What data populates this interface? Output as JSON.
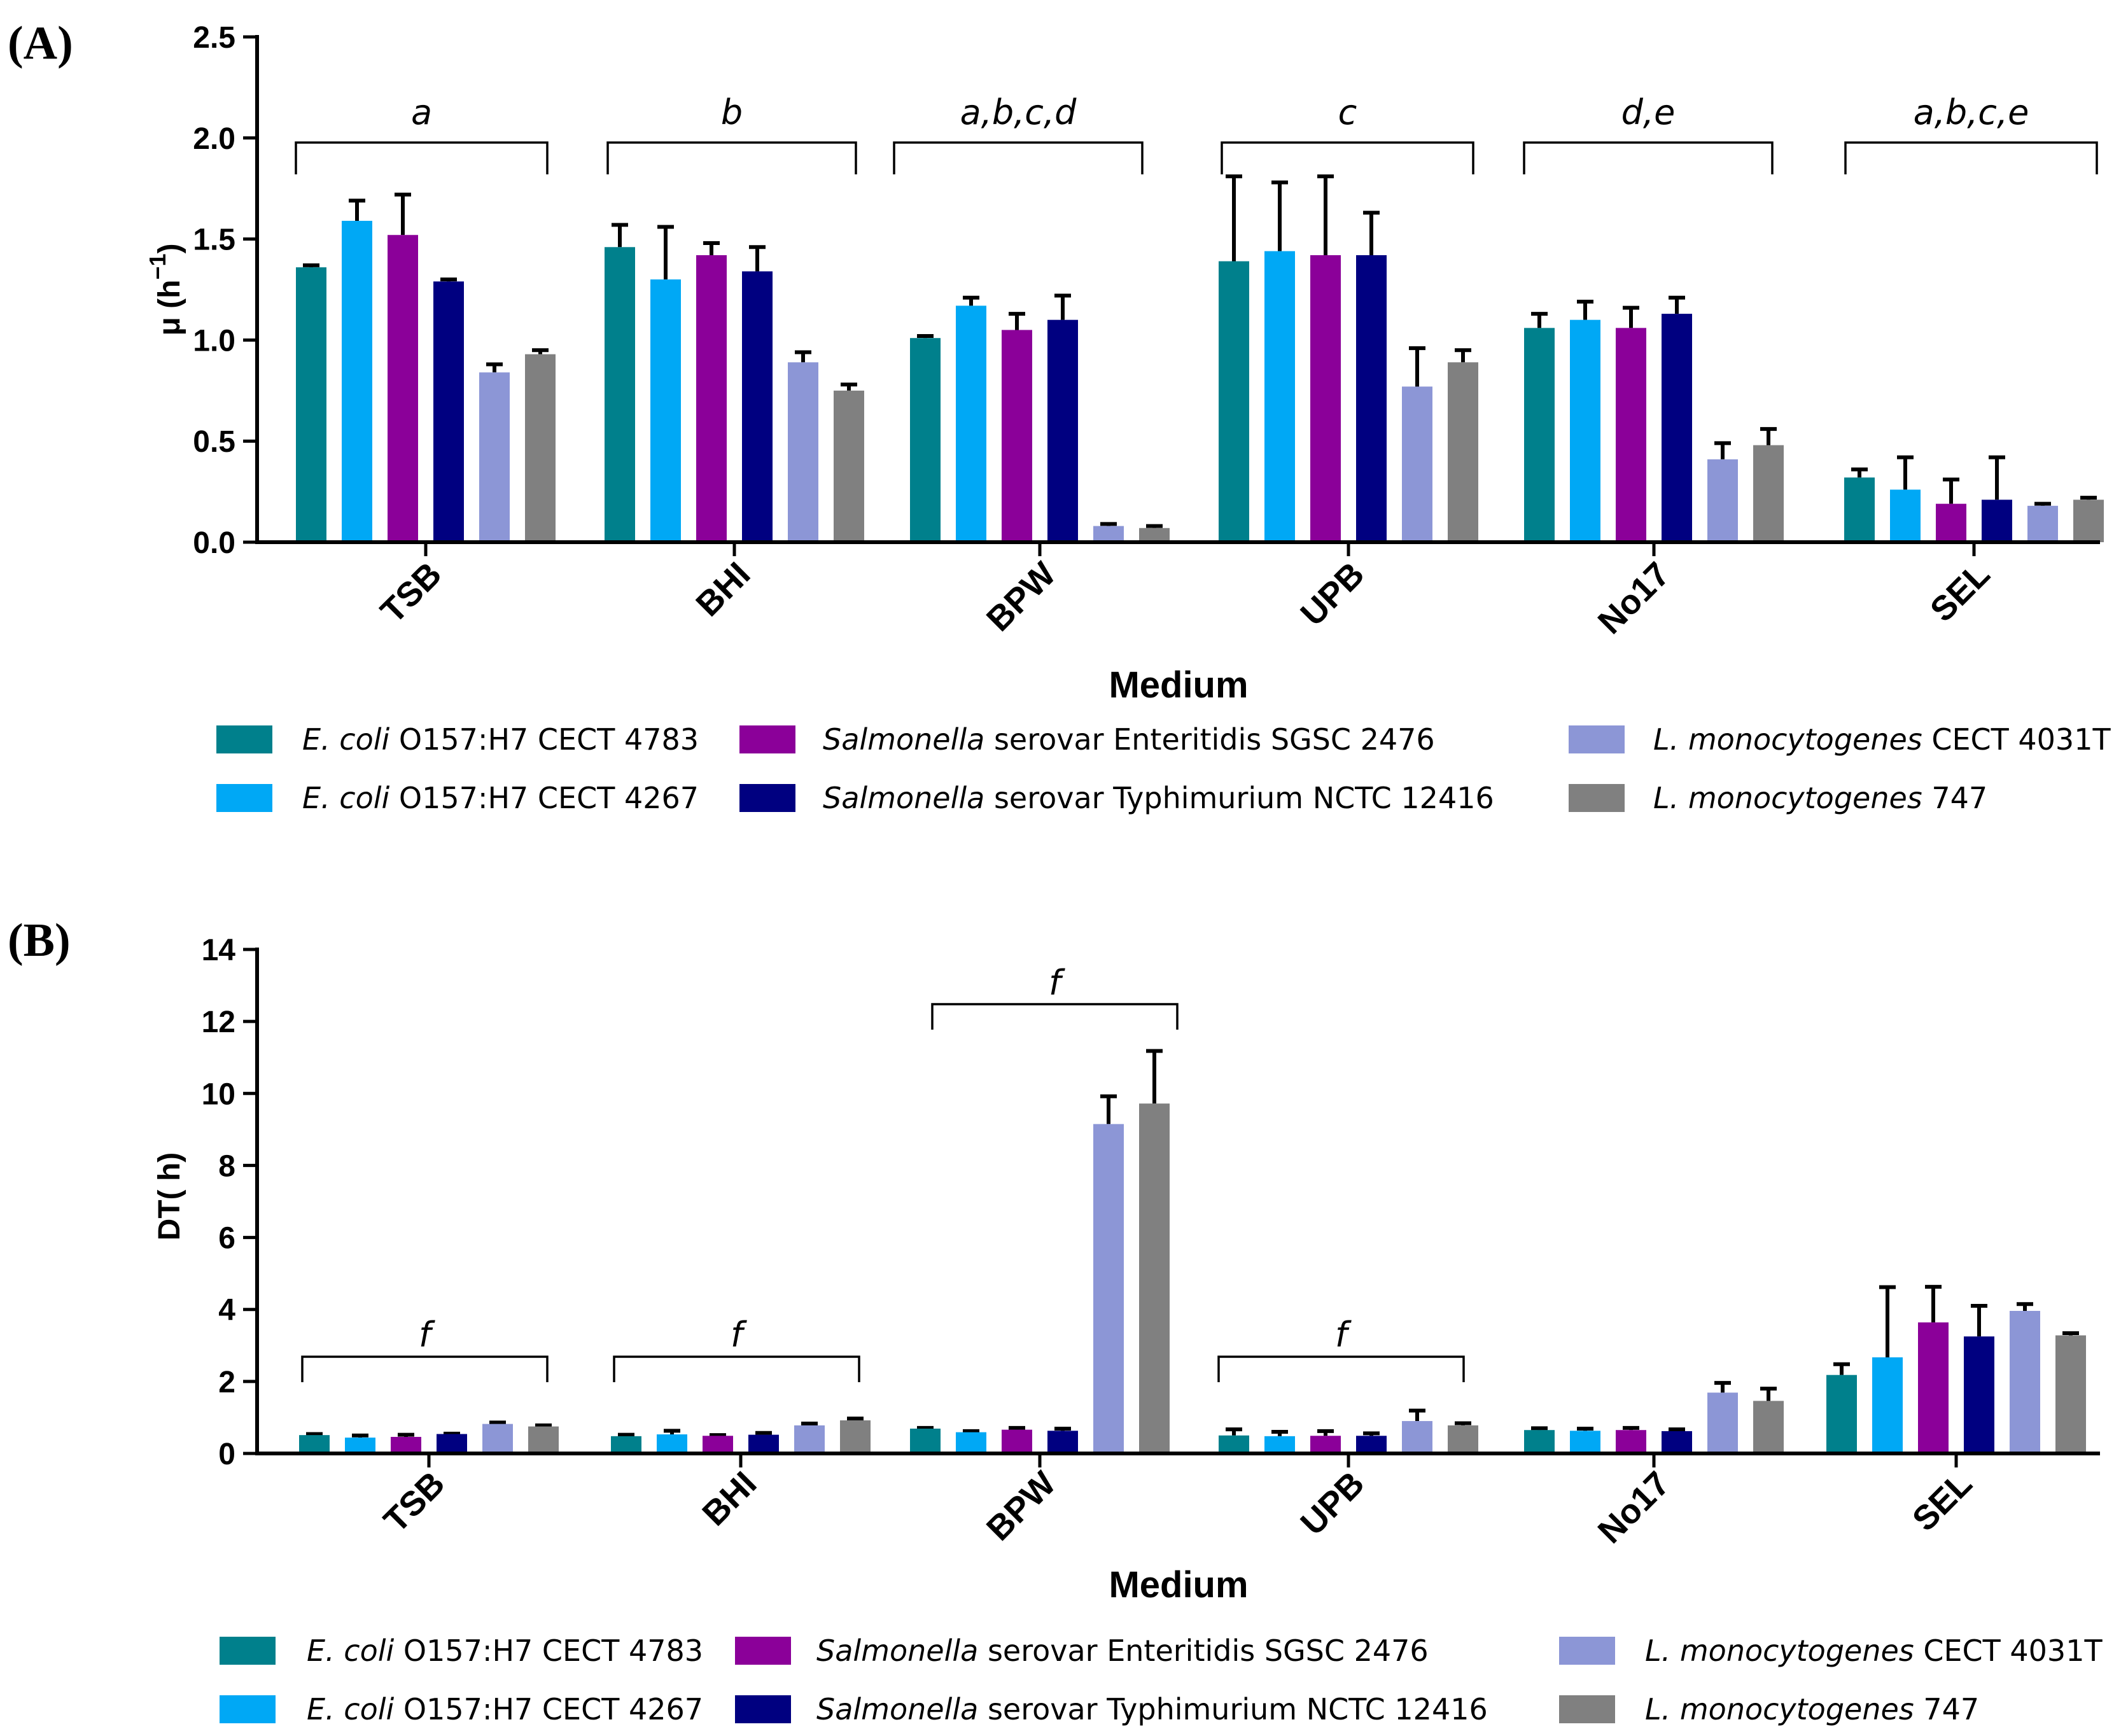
{
  "chart_data": [
    {
      "panel_label": "(A)",
      "type": "bar",
      "title": "",
      "xlabel": "Medium",
      "ylabel": "μ (h",
      "ylabel_sup": "−1",
      "ylabel_close": ")",
      "ylim": [
        0,
        2.5
      ],
      "yticks": [
        "0.0",
        "0.5",
        "1.0",
        "1.5",
        "2.0",
        "2.5"
      ],
      "yticks_values": [
        0,
        0.5,
        1.0,
        1.5,
        2.0,
        2.5
      ],
      "categories": [
        "TSB",
        "BHI",
        "BPW",
        "UPB",
        "No17",
        "SEL"
      ],
      "series": [
        {
          "name": "E. coli O157:H7 CECT 4783",
          "color": "#00808C",
          "values": [
            1.36,
            1.46,
            1.01,
            1.39,
            1.06,
            0.32
          ],
          "errors": [
            0.01,
            0.11,
            0.01,
            0.42,
            0.07,
            0.04
          ]
        },
        {
          "name": "E. coli O157:H7 CECT 4267",
          "color": "#00A8F5",
          "values": [
            1.59,
            1.3,
            1.17,
            1.44,
            1.1,
            0.26
          ],
          "errors": [
            0.1,
            0.26,
            0.04,
            0.34,
            0.09,
            0.16
          ]
        },
        {
          "name": "Salmonella serovar Enteritidis SGSC 2476",
          "color": "#8B0099",
          "values": [
            1.52,
            1.42,
            1.05,
            1.42,
            1.06,
            0.19
          ],
          "errors": [
            0.2,
            0.06,
            0.08,
            0.39,
            0.1,
            0.12
          ]
        },
        {
          "name": "Salmonella serovar Typhimurium NCTC 12416",
          "color": "#000080",
          "values": [
            1.29,
            1.34,
            1.1,
            1.42,
            1.13,
            0.21
          ],
          "errors": [
            0.01,
            0.12,
            0.12,
            0.21,
            0.08,
            0.21
          ]
        },
        {
          "name": "L. monocytogenes CECT 4031T",
          "color": "#8C96D6",
          "values": [
            0.84,
            0.89,
            0.08,
            0.77,
            0.41,
            0.18
          ],
          "errors": [
            0.04,
            0.05,
            0.01,
            0.19,
            0.08,
            0.01
          ]
        },
        {
          "name": "L. monocytogenes 747",
          "color": "#808080",
          "values": [
            0.93,
            0.75,
            0.07,
            0.89,
            0.48,
            0.21
          ],
          "errors": [
            0.02,
            0.03,
            0.01,
            0.06,
            0.08,
            0.01
          ]
        }
      ],
      "brackets": [
        {
          "category": "TSB",
          "label": "a"
        },
        {
          "category": "BHI",
          "label": "b"
        },
        {
          "category": "BPW",
          "label": "a,b,c,d"
        },
        {
          "category": "UPB",
          "label": "c"
        },
        {
          "category": "No17",
          "label": "d,e"
        },
        {
          "category": "SEL",
          "label": "a,b,c,e"
        }
      ],
      "legend": [
        {
          "italic": "E. coli",
          "rest": " O157:H7 CECT 4783",
          "color": "#00808C"
        },
        {
          "italic": "E. coli",
          "rest": " O157:H7 CECT 4267",
          "color": "#00A8F5"
        },
        {
          "italic": "Salmonella",
          "rest": " serovar Enteritidis SGSC 2476",
          "color": "#8B0099"
        },
        {
          "italic": "Salmonella",
          "rest": " serovar Typhimurium NCTC 12416",
          "color": "#000080"
        },
        {
          "italic": "L. monocytogenes",
          "rest": " CECT 4031T",
          "color": "#8C96D6"
        },
        {
          "italic": "L. monocytogenes",
          "rest": " 747",
          "color": "#808080"
        }
      ]
    },
    {
      "panel_label": "(B)",
      "type": "bar",
      "title": "",
      "xlabel": "Medium",
      "ylabel": "DT( h)",
      "ylim": [
        0,
        14
      ],
      "yticks": [
        "0",
        "2",
        "4",
        "6",
        "8",
        "10",
        "12",
        "14"
      ],
      "yticks_values": [
        0,
        2,
        4,
        6,
        8,
        10,
        12,
        14
      ],
      "categories": [
        "TSB",
        "BHI",
        "BPW",
        "UPB",
        "No17",
        "SEL"
      ],
      "series": [
        {
          "name": "E. coli O157:H7 CECT 4783",
          "color": "#00808C",
          "values": [
            0.51,
            0.48,
            0.69,
            0.5,
            0.65,
            2.18
          ],
          "errors": [
            0.03,
            0.04,
            0.02,
            0.17,
            0.05,
            0.3
          ]
        },
        {
          "name": "E. coli O157:H7 CECT 4267",
          "color": "#00A8F5",
          "values": [
            0.44,
            0.53,
            0.59,
            0.48,
            0.63,
            2.67
          ],
          "errors": [
            0.06,
            0.1,
            0.03,
            0.12,
            0.06,
            1.95
          ]
        },
        {
          "name": "Salmonella serovar Enteritidis SGSC 2476",
          "color": "#8B0099",
          "values": [
            0.46,
            0.49,
            0.66,
            0.49,
            0.65,
            3.64
          ],
          "errors": [
            0.06,
            0.02,
            0.05,
            0.13,
            0.06,
            0.99
          ]
        },
        {
          "name": "Salmonella serovar Typhimurium NCTC 12416",
          "color": "#000080",
          "values": [
            0.54,
            0.52,
            0.63,
            0.49,
            0.62,
            3.25
          ],
          "errors": [
            0.01,
            0.05,
            0.06,
            0.07,
            0.05,
            0.85
          ]
        },
        {
          "name": "L. monocytogenes CECT 4031T",
          "color": "#8C96D6",
          "values": [
            0.82,
            0.78,
            9.15,
            0.9,
            1.69,
            3.96
          ],
          "errors": [
            0.04,
            0.05,
            0.77,
            0.29,
            0.27,
            0.19
          ]
        },
        {
          "name": "L. monocytogenes 747",
          "color": "#808080",
          "values": [
            0.75,
            0.92,
            9.72,
            0.78,
            1.46,
            3.28
          ],
          "errors": [
            0.03,
            0.05,
            1.46,
            0.06,
            0.34,
            0.06
          ]
        }
      ],
      "brackets": [
        {
          "category": "TSB",
          "label": "f"
        },
        {
          "category": "BHI",
          "label": "f"
        },
        {
          "category": "BPW",
          "label": "f"
        },
        {
          "category": "UPB",
          "label": "f"
        }
      ],
      "legend": [
        {
          "italic": "E. coli",
          "rest": " O157:H7 CECT 4783",
          "color": "#00808C"
        },
        {
          "italic": "E. coli",
          "rest": " O157:H7 CECT 4267",
          "color": "#00A8F5"
        },
        {
          "italic": "Salmonella",
          "rest": " serovar Enteritidis SGSC 2476",
          "color": "#8B0099"
        },
        {
          "italic": "Salmonella",
          "rest": " serovar Typhimurium NCTC 12416",
          "color": "#000080"
        },
        {
          "italic": "L. monocytogenes",
          "rest": " CECT 4031T",
          "color": "#8C96D6"
        },
        {
          "italic": "L. monocytogenes",
          "rest": " 747",
          "color": "#808080"
        }
      ]
    }
  ]
}
